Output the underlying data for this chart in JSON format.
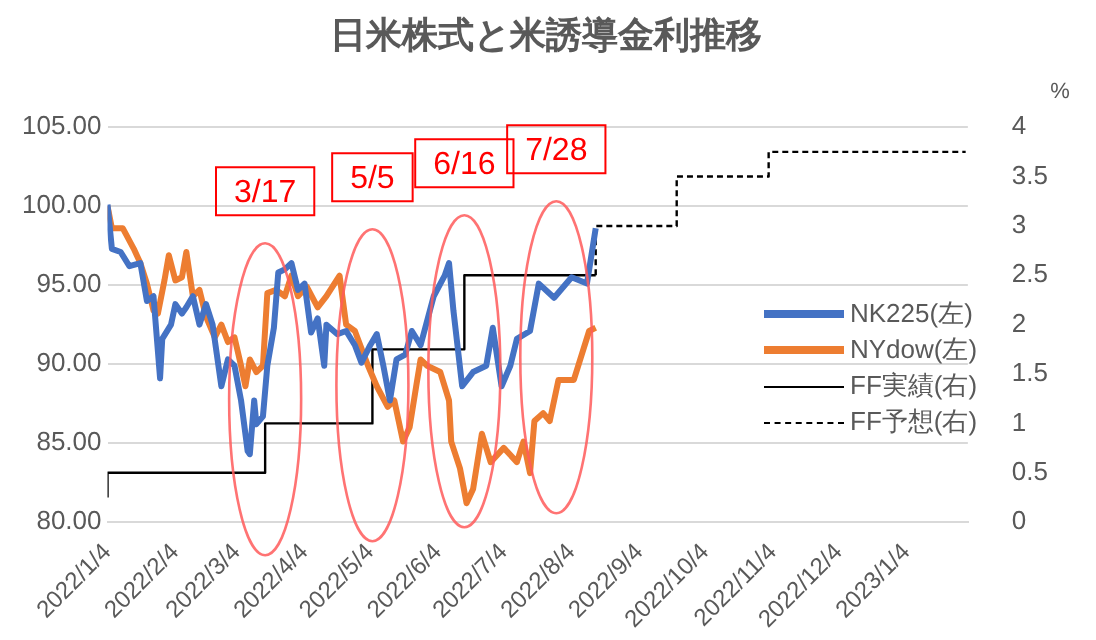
{
  "chart_data": {
    "type": "line",
    "title": "日米株式と米誘導金利推移",
    "y2label": "%",
    "grid": "y",
    "legend": "bottom right",
    "marker": "none",
    "xlim": [
      "2022-01-04",
      "2023-02-01"
    ],
    "xticks": [
      {
        "value": "2022-01-04",
        "label": "2022/1/4"
      },
      {
        "value": "2022-02-04",
        "label": "2022/2/4"
      },
      {
        "value": "2022-03-04",
        "label": "2022/3/4"
      },
      {
        "value": "2022-04-04",
        "label": "2022/4/4"
      },
      {
        "value": "2022-05-04",
        "label": "2022/5/4"
      },
      {
        "value": "2022-06-04",
        "label": "2022/6/4"
      },
      {
        "value": "2022-07-04",
        "label": "2022/7/4"
      },
      {
        "value": "2022-08-04",
        "label": "2022/8/4"
      },
      {
        "value": "2022-09-04",
        "label": "2022/9/4"
      },
      {
        "value": "2022-10-04",
        "label": "2022/10/4"
      },
      {
        "value": "2022-11-04",
        "label": "2022/11/4"
      },
      {
        "value": "2022-12-04",
        "label": "2022/12/4"
      },
      {
        "value": "2023-01-04",
        "label": "2023/1/4"
      }
    ],
    "ylim": [
      80,
      105
    ],
    "yticks": [
      {
        "value": 80,
        "label": "80.00"
      },
      {
        "value": 85,
        "label": "85.00"
      },
      {
        "value": 90,
        "label": "90.00"
      },
      {
        "value": 95,
        "label": "95.00"
      },
      {
        "value": 100,
        "label": "100.00"
      },
      {
        "value": 105,
        "label": "105.00"
      }
    ],
    "y2lim": [
      0,
      4
    ],
    "y2ticks": [
      0,
      0.5,
      1,
      1.5,
      2,
      2.5,
      3,
      3.5,
      4
    ],
    "series": [
      {
        "name": "NK225(左)",
        "color": "#4472c4",
        "x": [
          "2022-01-04",
          "2022-01-06",
          "2022-01-10",
          "2022-01-14",
          "2022-01-19",
          "2022-01-22",
          "2022-01-25",
          "2022-01-28",
          "2022-01-29",
          "2022-02-02",
          "2022-02-04",
          "2022-02-07",
          "2022-02-09",
          "2022-02-12",
          "2022-02-15",
          "2022-02-18",
          "2022-02-21",
          "2022-02-25",
          "2022-02-28",
          "2022-03-03",
          "2022-03-06",
          "2022-03-09",
          "2022-03-10",
          "2022-03-12",
          "2022-03-13",
          "2022-03-16",
          "2022-03-18",
          "2022-03-21",
          "2022-03-23",
          "2022-03-26",
          "2022-03-29",
          "2022-04-01",
          "2022-04-04",
          "2022-04-07",
          "2022-04-10",
          "2022-04-13",
          "2022-04-14",
          "2022-04-19",
          "2022-04-23",
          "2022-04-27",
          "2022-04-30",
          "2022-05-04",
          "2022-05-07",
          "2022-05-10",
          "2022-05-13",
          "2022-05-16",
          "2022-05-20",
          "2022-05-23",
          "2022-05-27",
          "2022-06-02",
          "2022-06-07",
          "2022-06-09",
          "2022-06-11",
          "2022-06-15",
          "2022-06-20",
          "2022-06-26",
          "2022-06-29",
          "2022-07-03",
          "2022-07-07",
          "2022-07-10",
          "2022-07-16",
          "2022-07-20",
          "2022-07-27",
          "2022-08-04",
          "2022-08-11",
          "2022-08-15"
        ],
        "values": [
          100.1,
          97.3,
          97.1,
          96.2,
          96.4,
          94.0,
          94.3,
          89.1,
          91.6,
          92.5,
          93.8,
          93.2,
          93.6,
          94.3,
          92.5,
          93.8,
          92.5,
          88.6,
          90.3,
          89.9,
          87.7,
          84.5,
          84.3,
          87.7,
          86.2,
          86.7,
          89.9,
          92.3,
          95.8,
          96.0,
          96.4,
          94.7,
          95.1,
          92.0,
          92.9,
          89.9,
          92.5,
          91.9,
          92.1,
          91.2,
          90.1,
          91.2,
          91.9,
          89.9,
          87.7,
          90.3,
          90.6,
          92.1,
          91.2,
          94.3,
          95.6,
          96.4,
          93.4,
          88.6,
          89.5,
          89.9,
          92.3,
          88.6,
          89.9,
          91.6,
          92.1,
          95.1,
          94.2,
          95.5,
          95.1,
          98.6
        ]
      },
      {
        "name": "NYdow(左)",
        "color": "#ed7d31",
        "x": [
          "2022-01-04",
          "2022-01-06",
          "2022-01-11",
          "2022-01-16",
          "2022-01-19",
          "2022-01-22",
          "2022-01-25",
          "2022-01-27",
          "2022-01-30",
          "2022-02-01",
          "2022-02-04",
          "2022-02-07",
          "2022-02-09",
          "2022-02-12",
          "2022-02-15",
          "2022-02-18",
          "2022-02-22",
          "2022-02-25",
          "2022-02-28",
          "2022-03-03",
          "2022-03-06",
          "2022-03-08",
          "2022-03-10",
          "2022-03-13",
          "2022-03-16",
          "2022-03-18",
          "2022-03-22",
          "2022-03-26",
          "2022-03-29",
          "2022-04-01",
          "2022-04-05",
          "2022-04-10",
          "2022-04-14",
          "2022-04-20",
          "2022-04-23",
          "2022-04-27",
          "2022-05-03",
          "2022-05-07",
          "2022-05-12",
          "2022-05-15",
          "2022-05-19",
          "2022-05-22",
          "2022-05-25",
          "2022-05-27",
          "2022-05-30",
          "2022-06-05",
          "2022-06-09",
          "2022-06-10",
          "2022-06-14",
          "2022-06-17",
          "2022-06-20",
          "2022-06-24",
          "2022-06-28",
          "2022-07-04",
          "2022-07-10",
          "2022-07-13",
          "2022-07-16",
          "2022-07-18",
          "2022-07-22",
          "2022-07-25",
          "2022-07-29",
          "2022-08-05",
          "2022-08-12",
          "2022-08-15"
        ],
        "values": [
          100.0,
          98.6,
          98.6,
          97.3,
          96.4,
          95.1,
          93.4,
          93.2,
          95.3,
          96.9,
          95.3,
          95.5,
          97.1,
          94.3,
          94.7,
          93.0,
          91.7,
          92.5,
          91.4,
          91.7,
          89.9,
          88.6,
          90.3,
          89.5,
          89.9,
          94.5,
          94.7,
          94.3,
          95.6,
          94.3,
          94.9,
          93.6,
          94.3,
          95.6,
          92.5,
          92.1,
          89.9,
          88.6,
          87.3,
          87.7,
          85.1,
          86.0,
          88.6,
          90.3,
          89.9,
          89.5,
          87.7,
          85.1,
          83.4,
          81.2,
          82.1,
          85.6,
          83.8,
          84.7,
          83.8,
          85.1,
          83.1,
          86.4,
          86.9,
          86.4,
          89.0,
          89.0,
          92.1,
          92.3
        ]
      },
      {
        "name": "FF実績(右)",
        "type": "step",
        "axis": "y2",
        "color": "#000000",
        "line_style": "solid",
        "x": [
          "2022-01-04",
          "2022-03-17",
          "2022-05-05",
          "2022-06-16",
          "2022-07-28",
          "2022-08-15"
        ],
        "values": [
          0.25,
          0.5,
          1.0,
          1.75,
          2.5,
          2.5
        ]
      },
      {
        "name": "FF予想(右)",
        "type": "step",
        "axis": "y2",
        "color": "#000000",
        "line_style": "dashed",
        "x": [
          "2022-08-15",
          "2022-09-21",
          "2022-11-02",
          "2022-12-14",
          "2023-01-31"
        ],
        "values": [
          2.5,
          3.0,
          3.5,
          3.75,
          3.75
        ]
      }
    ],
    "annotations": [
      "3/17",
      "5/5",
      "6/16",
      "7/28"
    ]
  }
}
